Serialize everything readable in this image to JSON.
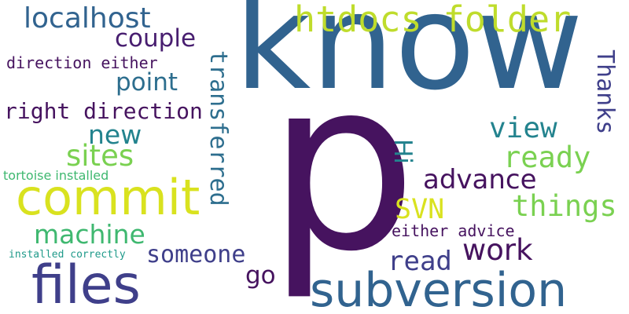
{
  "words": {
    "know": "know",
    "p": "p",
    "htdocs_folder": "htdocs folder",
    "localhost": "localhost",
    "couple": "couple",
    "direction_either": "direction either",
    "point": "point",
    "right_direction": "right direction",
    "new": "new",
    "sites": "sites",
    "tortoise_installed": "tortoise installed",
    "commit": "commit",
    "machine": "machine",
    "installed_correctly": "installed correctly",
    "files": "files",
    "someone": "someone",
    "go": "go",
    "transferred": "transferred",
    "thanks": "Thanks",
    "view": "view",
    "ready": "ready",
    "hi": "Hi",
    "advance": "advance",
    "things": "things",
    "svn": "SVN",
    "either_advice": "either advice",
    "work": "work",
    "read": "read",
    "subversion": "subversion"
  },
  "colors": {
    "background": "#ffffff",
    "dark_purple": "#46135f",
    "deep_purple": "#481e70",
    "indigo": "#3f3f8a",
    "blue": "#31638f",
    "steel_blue": "#2d6e8e",
    "teal": "#23838e",
    "teal_green": "#1f9a8a",
    "green": "#3fb870",
    "light_green": "#7ad151",
    "yellow_green": "#bfdc2c",
    "yellow": "#d9e21f"
  }
}
